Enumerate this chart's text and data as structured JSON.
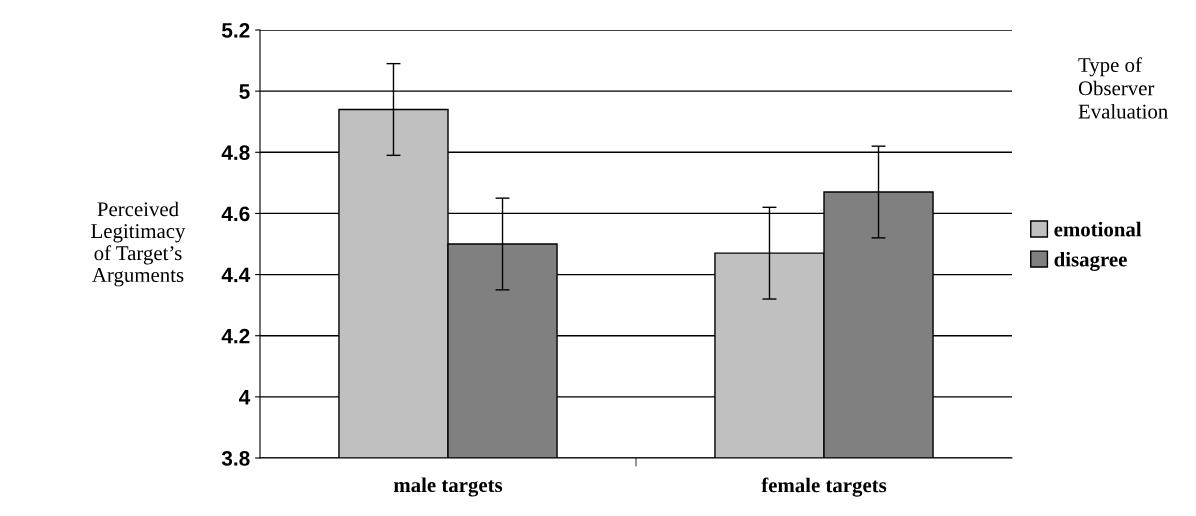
{
  "chart_data": {
    "type": "bar",
    "ylabel": "Perceived\nLegitimacy\nof Target’s\nArguments",
    "legend_title": "Type of\nObserver\nEvaluation",
    "categories": [
      "male targets",
      "female targets"
    ],
    "series": [
      {
        "name": "emotional",
        "color": "#c0c0c0",
        "values": [
          4.94,
          4.47
        ],
        "errors": [
          0.15,
          0.15
        ]
      },
      {
        "name": "disagree",
        "color": "#808080",
        "values": [
          4.5,
          4.67
        ],
        "errors": [
          0.15,
          0.15
        ]
      }
    ],
    "ylim": [
      3.8,
      5.2
    ],
    "yticks": [
      3.8,
      4,
      4.2,
      4.4,
      4.6,
      4.8,
      5,
      5.2
    ],
    "grid": "y",
    "legend": "right"
  }
}
